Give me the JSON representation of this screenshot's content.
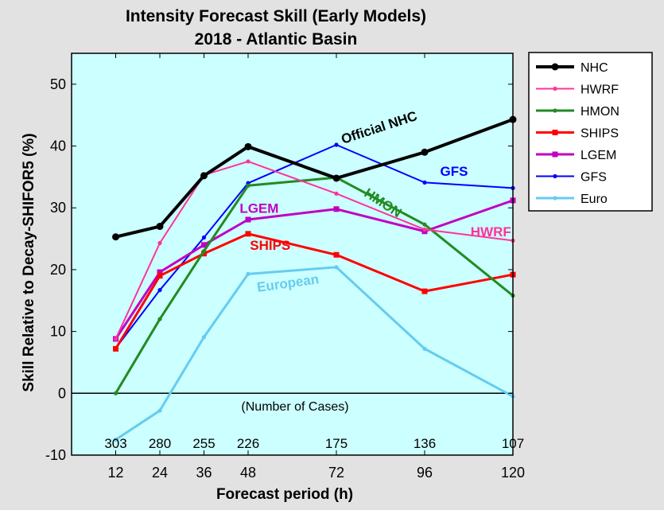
{
  "chart_data": {
    "type": "line",
    "title": "Intensity Forecast Skill (Early Models)",
    "subtitle": "2018 - Atlantic Basin",
    "xlabel": "Forecast period (h)",
    "ylabel": "Skill Relative to Decay-SHIFOR5 (%)",
    "x": [
      12,
      24,
      36,
      48,
      72,
      96,
      120
    ],
    "xlim": [
      0,
      120
    ],
    "ylim": [
      -10,
      55
    ],
    "yticks": [
      -10,
      0,
      10,
      20,
      30,
      40,
      50
    ],
    "plot_background": "#ccffff",
    "page_background": "#e2e2e2",
    "number_of_cases_label": "(Number of Cases)",
    "number_of_cases": [
      "303",
      "280",
      "255",
      "226",
      "175",
      "136",
      "107"
    ],
    "series": [
      {
        "name": "NHC",
        "color": "#000000",
        "width": 4,
        "marker": "circle",
        "values": [
          25.3,
          27.0,
          35.2,
          39.9,
          34.8,
          39.0,
          44.3
        ]
      },
      {
        "name": "HWRF",
        "color": "#ff3399",
        "width": 2,
        "marker": "dot",
        "values": [
          8.8,
          24.3,
          35.3,
          37.5,
          32.3,
          26.5,
          24.7
        ]
      },
      {
        "name": "HMON",
        "color": "#228b22",
        "width": 3,
        "marker": "dot",
        "values": [
          0.0,
          12.0,
          23.0,
          33.6,
          34.9,
          27.3,
          15.8
        ]
      },
      {
        "name": "SHIPS",
        "color": "#ff0000",
        "width": 3,
        "marker": "square",
        "values": [
          7.2,
          19.0,
          22.6,
          25.8,
          22.4,
          16.5,
          19.2
        ]
      },
      {
        "name": "LGEM",
        "color": "#c000c0",
        "width": 3,
        "marker": "square",
        "values": [
          8.8,
          19.6,
          24.0,
          28.1,
          29.8,
          26.2,
          31.2
        ]
      },
      {
        "name": "GFS",
        "color": "#0000ff",
        "width": 2,
        "marker": "dot",
        "values": [
          7.3,
          16.7,
          25.2,
          34.0,
          40.2,
          34.1,
          33.2
        ]
      },
      {
        "name": "Euro",
        "color": "#66ccee",
        "width": 3,
        "marker": "dot",
        "values": [
          -7.5,
          -2.8,
          9.1,
          19.3,
          20.4,
          7.2,
          -0.5
        ]
      }
    ],
    "annotations": [
      {
        "text": "Official NHC",
        "color": "#000000",
        "x": 84,
        "y": 42.3,
        "angle": -18
      },
      {
        "text": "GFS",
        "color": "#0000ff",
        "x": 104,
        "y": 35.2,
        "angle": 0
      },
      {
        "text": "HMON",
        "color": "#228b22",
        "x": 84,
        "y": 30.2,
        "angle": 33
      },
      {
        "text": "LGEM",
        "color": "#c000c0",
        "x": 51,
        "y": 29.2,
        "angle": 0
      },
      {
        "text": "HWRF",
        "color": "#ff3399",
        "x": 114,
        "y": 25.4,
        "angle": 0
      },
      {
        "text": "SHIPS",
        "color": "#ff0000",
        "x": 54,
        "y": 23.2,
        "angle": 0
      },
      {
        "text": "European",
        "color": "#66ccee",
        "x": 59,
        "y": 17.1,
        "angle": -8
      }
    ],
    "legend": {
      "position": "right"
    }
  }
}
